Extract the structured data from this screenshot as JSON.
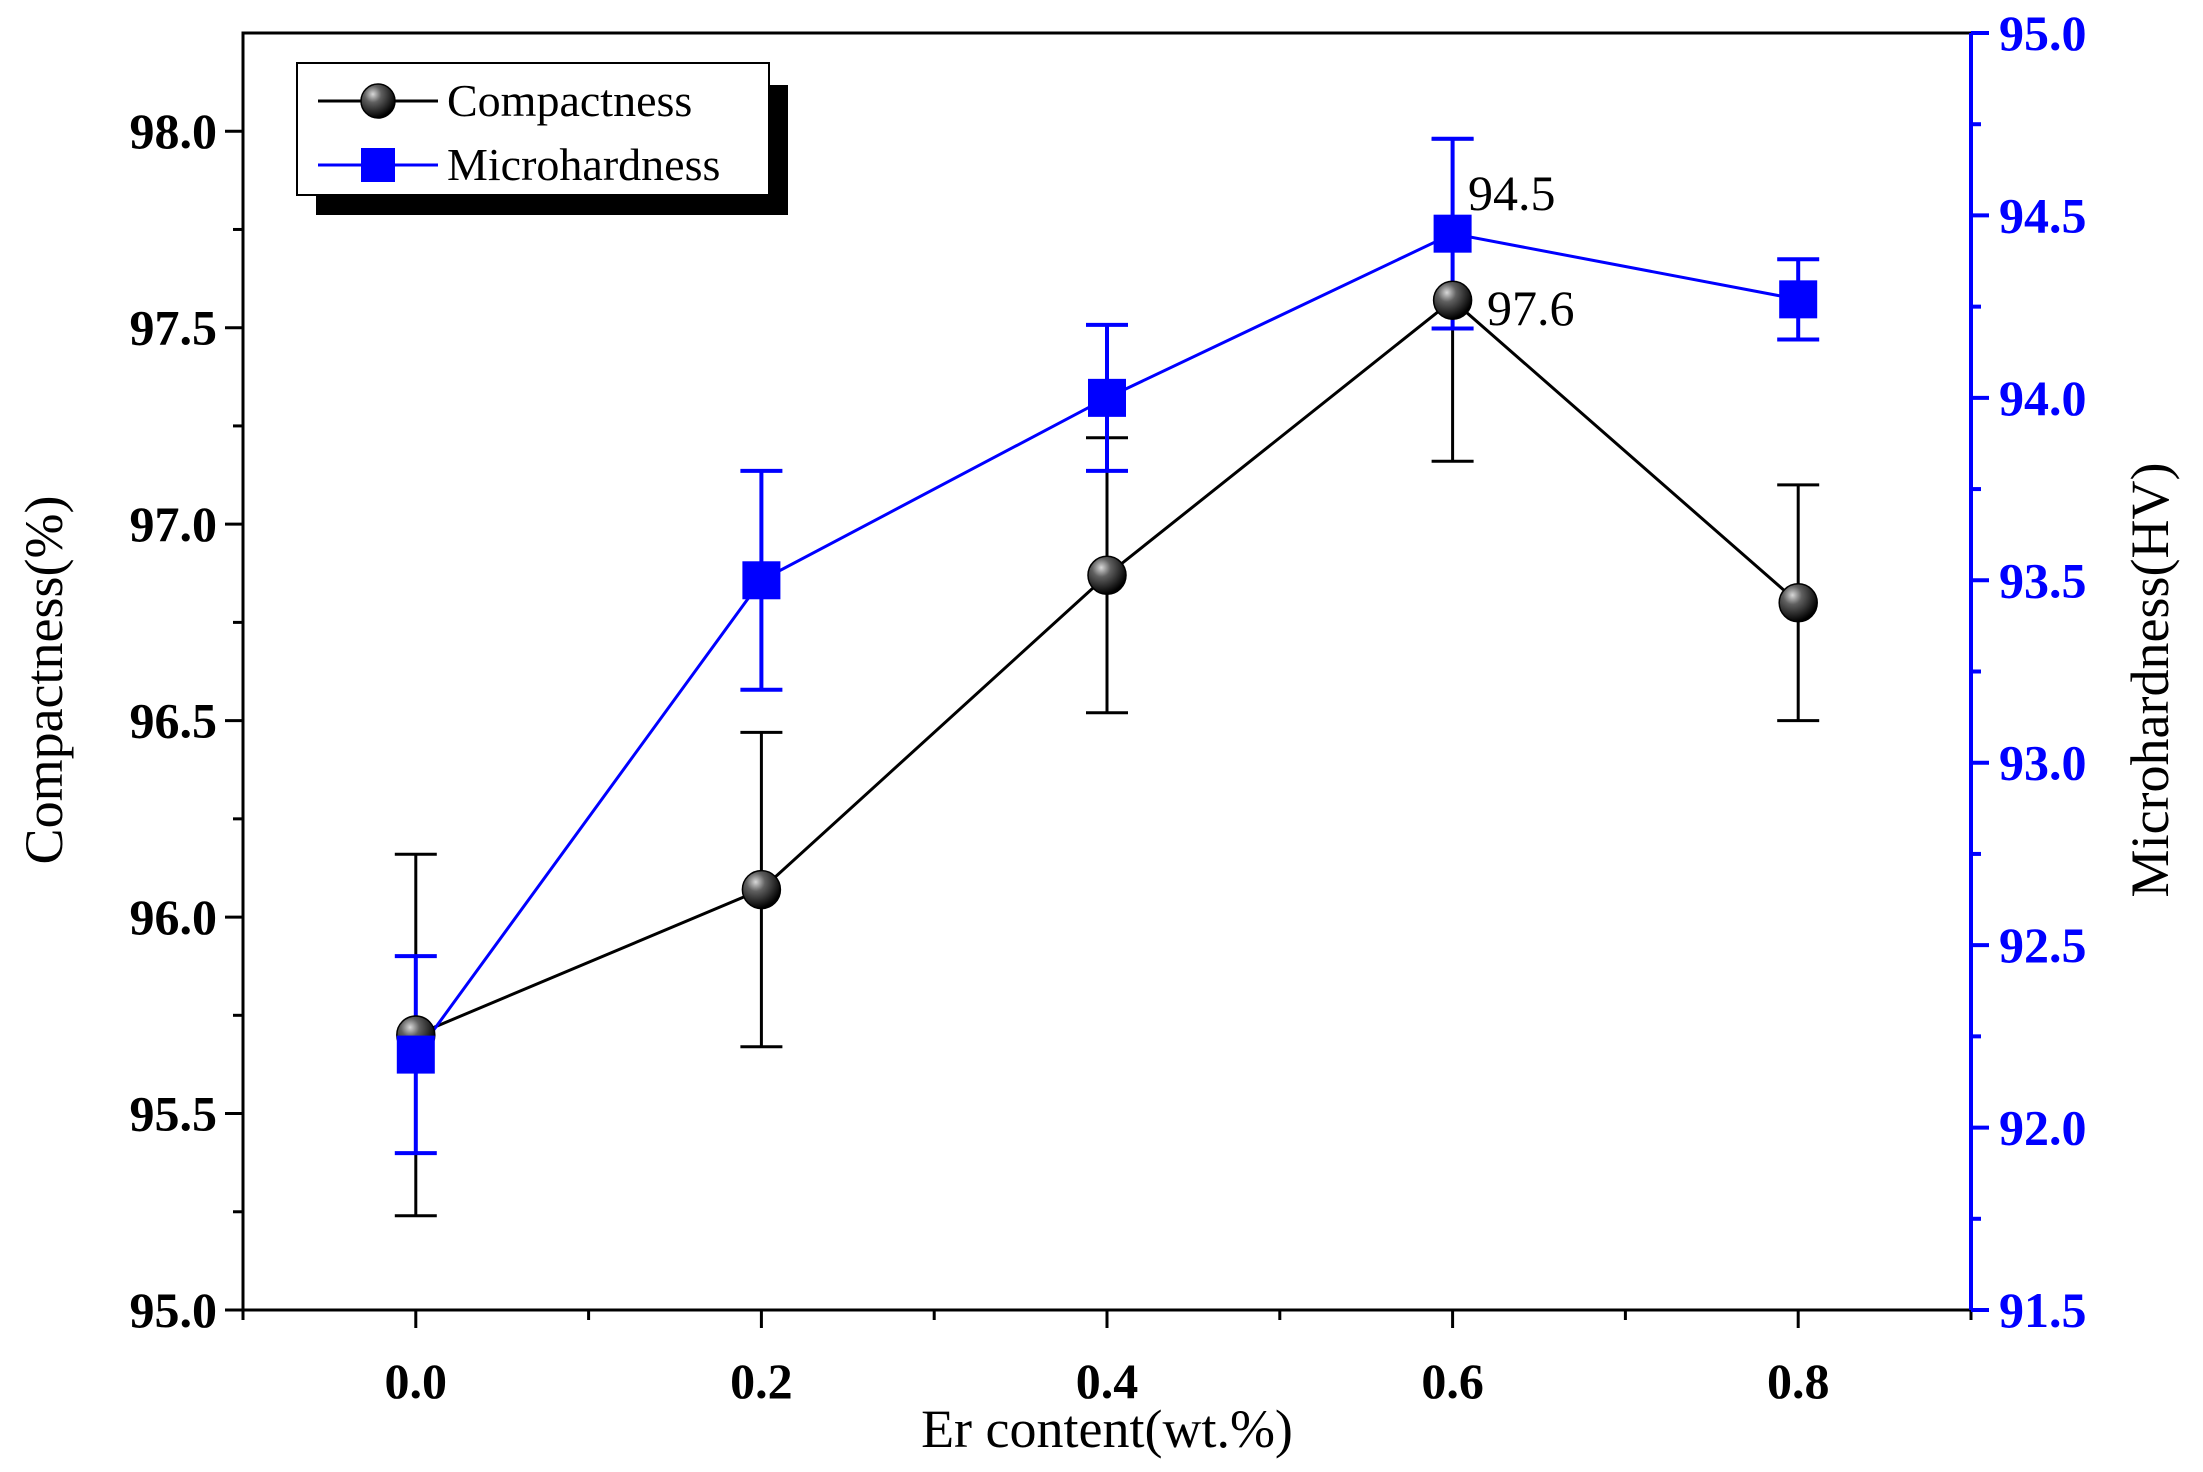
{
  "chart_data": {
    "type": "line",
    "title": "",
    "xlabel": "Er content(wt.%)",
    "ylabel": "Compactness(%)",
    "y2label": "Microhardness(HV)",
    "x": [
      0.0,
      0.2,
      0.4,
      0.6,
      0.8
    ],
    "x_tick_labels": [
      "0.0",
      "0.2",
      "0.4",
      "0.6",
      "0.8"
    ],
    "xlim": [
      -0.1,
      0.9
    ],
    "ylim": [
      95.0,
      98.25
    ],
    "y_tick_labels": [
      "95.0",
      "95.5",
      "96.0",
      "96.5",
      "97.0",
      "97.5",
      "98.0"
    ],
    "y2lim": [
      91.5,
      95.0
    ],
    "y2_tick_labels": [
      "91.5",
      "92.0",
      "92.5",
      "93.0",
      "93.5",
      "94.0",
      "94.5",
      "95.0"
    ],
    "legend_position": "top-left",
    "series": [
      {
        "name": "Compactness",
        "axis": "left",
        "color": "#000000",
        "marker": "sphere",
        "values": [
          95.7,
          96.07,
          96.87,
          97.57,
          96.8
        ],
        "errors": [
          0.46,
          0.4,
          0.35,
          0.41,
          0.3
        ]
      },
      {
        "name": "Microhardness",
        "axis": "right",
        "color": "#0000ff",
        "marker": "square",
        "values": [
          92.2,
          93.5,
          94.0,
          94.45,
          94.27
        ],
        "errors": [
          0.27,
          0.3,
          0.2,
          0.26,
          0.11
        ]
      }
    ],
    "annotations": [
      "94.5",
      "97.6"
    ]
  }
}
